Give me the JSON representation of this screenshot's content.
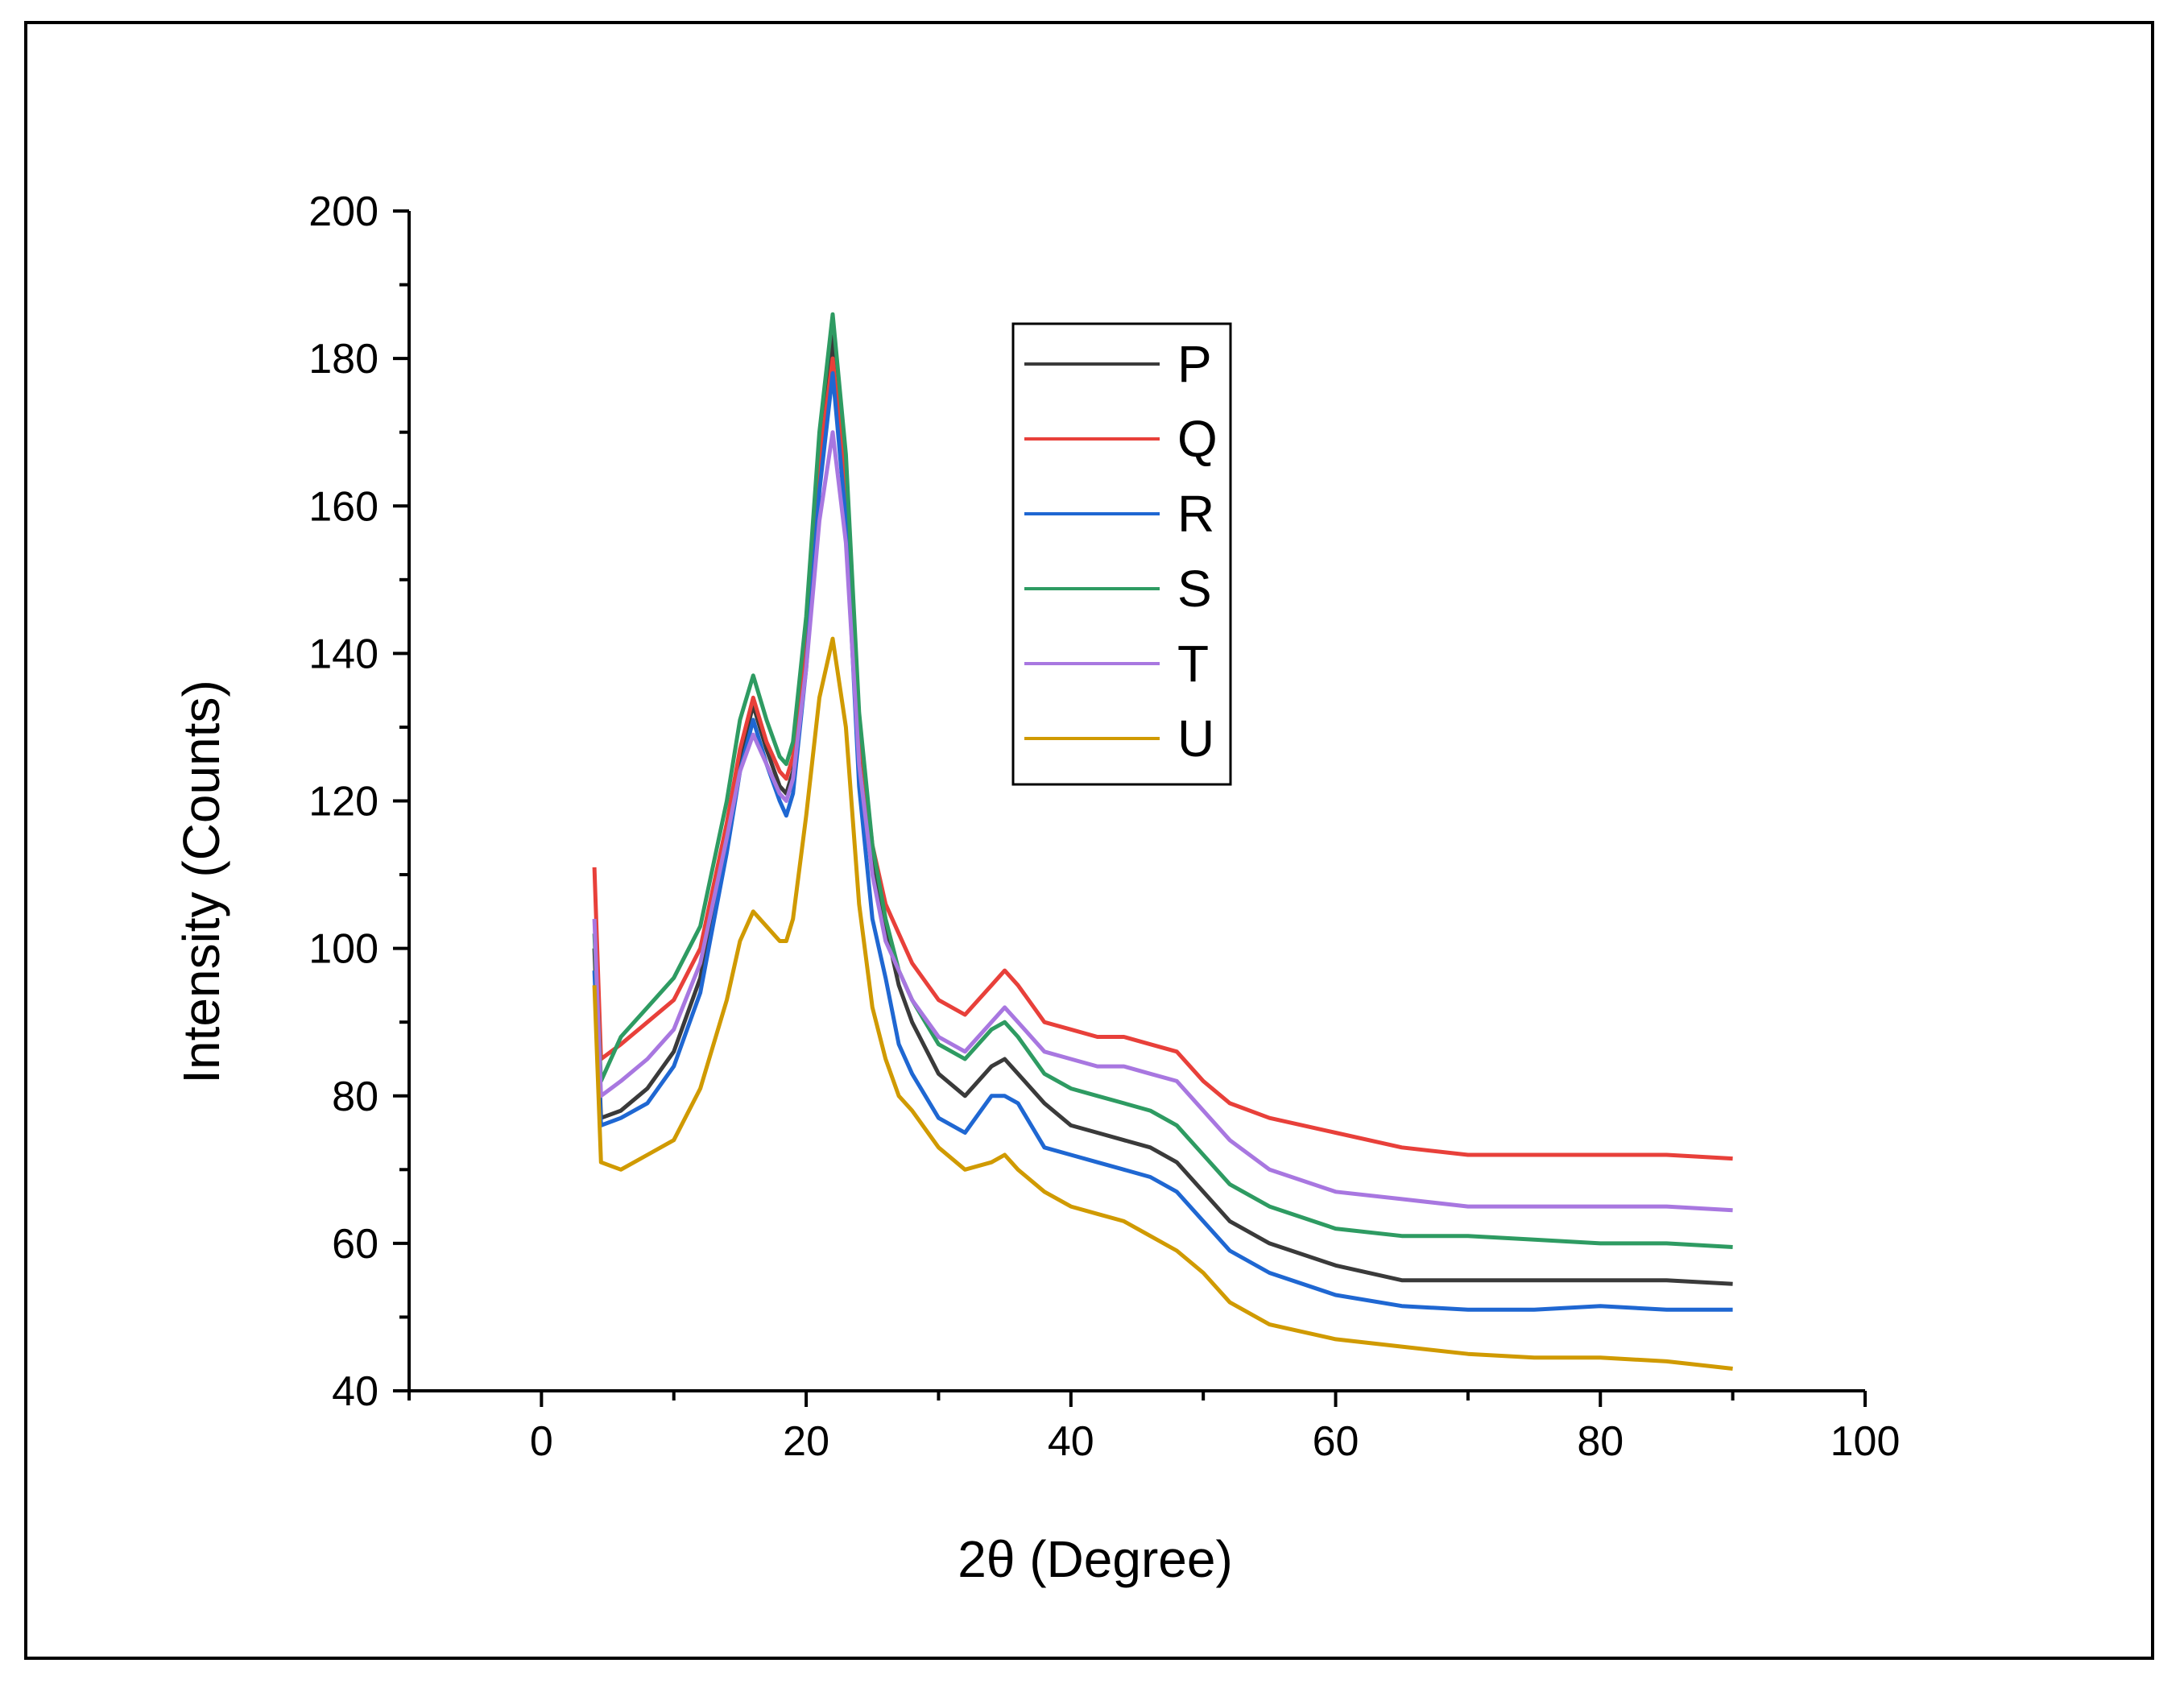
{
  "chart_data": {
    "type": "line",
    "title": "",
    "xlabel": "2θ (Degree)",
    "ylabel": "Intensity (Counts)",
    "xlim": [
      -10,
      100
    ],
    "ylim": [
      40,
      200
    ],
    "xticks": [
      0,
      20,
      40,
      60,
      80,
      100
    ],
    "yticks": [
      40,
      60,
      80,
      100,
      120,
      140,
      160,
      180,
      200
    ],
    "legend_position": "upper-center",
    "x": [
      4.0,
      4.5,
      6,
      8,
      10,
      12,
      14,
      15,
      16,
      17,
      18,
      18.5,
      19,
      20,
      21,
      22,
      23,
      24,
      25,
      26,
      27,
      28,
      30,
      32,
      34,
      35,
      36,
      38,
      40,
      42,
      44,
      46,
      48,
      50,
      52,
      55,
      60,
      65,
      70,
      75,
      80,
      85,
      90
    ],
    "series": [
      {
        "name": "P",
        "color": "#3a3a3a",
        "values": [
          100,
          77,
          78,
          81,
          86,
          96,
          115,
          126,
          133,
          127,
          122,
          121,
          124,
          140,
          165,
          183,
          162,
          128,
          112,
          103,
          95,
          90,
          83,
          80,
          84,
          85,
          83,
          79,
          76,
          75,
          74,
          73,
          71,
          67,
          63,
          60,
          57,
          55,
          55,
          55,
          55,
          55,
          54.5
        ]
      },
      {
        "name": "Q",
        "color": "#e8403a",
        "values": [
          111,
          85,
          87,
          90,
          93,
          100,
          117,
          127,
          134,
          128,
          124,
          123,
          126,
          142,
          166,
          180,
          163,
          130,
          114,
          106,
          102,
          98,
          93,
          91,
          95,
          97,
          95,
          90,
          89,
          88,
          88,
          87,
          86,
          82,
          79,
          77,
          75,
          73,
          72,
          72,
          72,
          72,
          71.5
        ]
      },
      {
        "name": "R",
        "color": "#1f67d2",
        "values": [
          97,
          76,
          77,
          79,
          84,
          94,
          113,
          124,
          131,
          125,
          120,
          118,
          121,
          138,
          162,
          178,
          158,
          122,
          104,
          96,
          87,
          83,
          77,
          75,
          80,
          80,
          79,
          73,
          72,
          71,
          70,
          69,
          67,
          63,
          59,
          56,
          53,
          51.5,
          51,
          51,
          51.5,
          51,
          51
        ]
      },
      {
        "name": "S",
        "color": "#2e9b62",
        "values": [
          102,
          82,
          88,
          92,
          96,
          103,
          120,
          131,
          137,
          131,
          126,
          125,
          128,
          145,
          170,
          186,
          167,
          132,
          114,
          104,
          97,
          93,
          87,
          85,
          89,
          90,
          88,
          83,
          81,
          80,
          79,
          78,
          76,
          72,
          68,
          65,
          62,
          61,
          61,
          60.5,
          60,
          60,
          59.5
        ]
      },
      {
        "name": "T",
        "color": "#a877e0",
        "values": [
          104,
          80,
          82,
          85,
          89,
          98,
          115,
          124,
          129,
          125,
          121,
          120,
          123,
          138,
          158,
          170,
          155,
          125,
          110,
          101,
          97,
          93,
          88,
          86,
          90,
          92,
          90,
          86,
          85,
          84,
          84,
          83,
          82,
          78,
          74,
          70,
          67,
          66,
          65,
          65,
          65,
          65,
          64.5
        ]
      },
      {
        "name": "U",
        "color": "#d09a00",
        "values": [
          95,
          71,
          70,
          72,
          74,
          81,
          93,
          101,
          105,
          103,
          101,
          101,
          104,
          118,
          134,
          142,
          130,
          106,
          92,
          85,
          80,
          78,
          73,
          70,
          71,
          72,
          70,
          67,
          65,
          64,
          63,
          61,
          59,
          56,
          52,
          49,
          47,
          46,
          45,
          44.5,
          44.5,
          44,
          43
        ]
      }
    ]
  },
  "legend": {
    "entries": [
      "P",
      "Q",
      "R",
      "S",
      "T",
      "U"
    ]
  },
  "axes": {
    "x_tick_labels": [
      "0",
      "20",
      "40",
      "60",
      "80",
      "100"
    ],
    "y_tick_labels": [
      "40",
      "60",
      "80",
      "100",
      "120",
      "140",
      "160",
      "180",
      "200"
    ],
    "xlabel": "2θ (Degree)",
    "ylabel": "Intensity (Counts)"
  }
}
